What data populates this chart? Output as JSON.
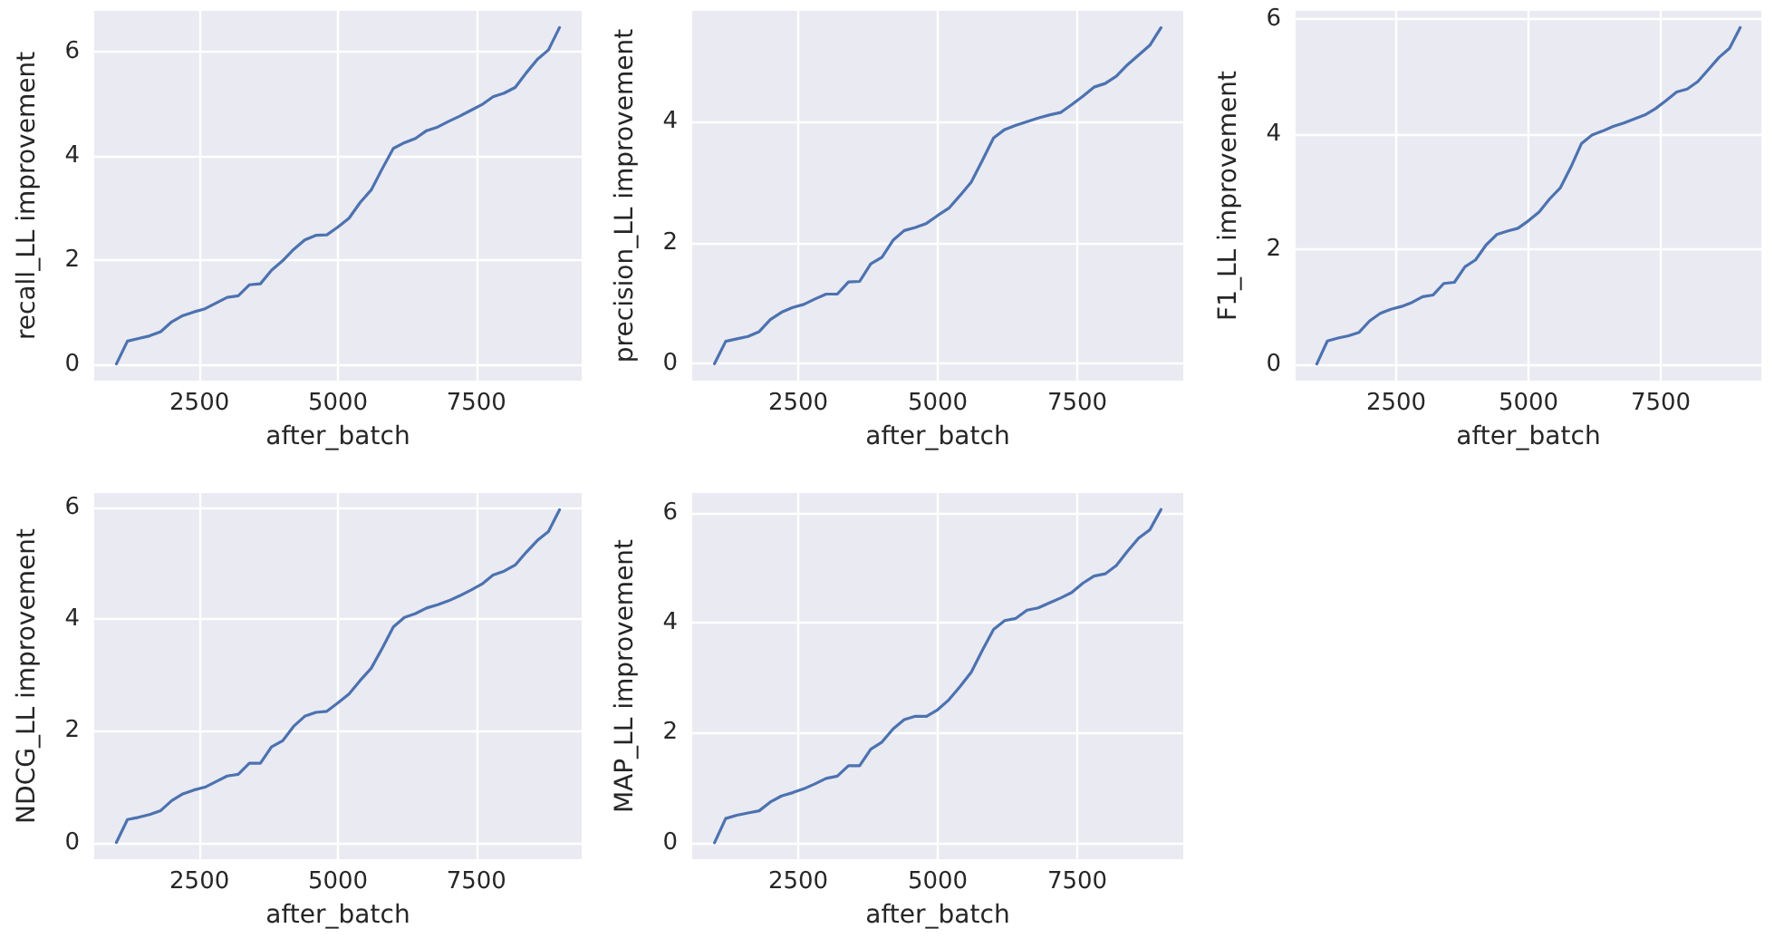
{
  "chart_data": [
    {
      "type": "line",
      "xlabel": "after_batch",
      "ylabel": "recall_LL improvement",
      "x": [
        1000,
        1200,
        1400,
        1600,
        1800,
        2000,
        2200,
        2400,
        2600,
        2800,
        3000,
        3200,
        3400,
        3600,
        3800,
        4000,
        4200,
        4400,
        4600,
        4800,
        5000,
        5200,
        5400,
        5600,
        5800,
        6000,
        6200,
        6400,
        6600,
        6800,
        7000,
        7200,
        7400,
        7600,
        7800,
        8000,
        8200,
        8400,
        8600,
        8800,
        9000
      ],
      "series": [
        {
          "color": "#4c72b0",
          "values": [
            0,
            0.44,
            0.49,
            0.54,
            0.62,
            0.81,
            0.93,
            1.0,
            1.06,
            1.17,
            1.28,
            1.31,
            1.52,
            1.54,
            1.8,
            1.98,
            2.2,
            2.38,
            2.47,
            2.48,
            2.63,
            2.8,
            3.1,
            3.34,
            3.75,
            4.14,
            4.25,
            4.33,
            4.48,
            4.55,
            4.66,
            4.76,
            4.87,
            4.98,
            5.13,
            5.2,
            5.31,
            5.59,
            5.85,
            6.03,
            6.46
          ]
        }
      ],
      "xlim": [
        600,
        9400
      ],
      "ylim": [
        -0.32,
        6.78
      ],
      "xticks": [
        2500,
        5000,
        7500
      ],
      "yticks": [
        0,
        2,
        4,
        6
      ],
      "grid": true,
      "marker": "none",
      "line_style": "solid"
    },
    {
      "type": "line",
      "xlabel": "after_batch",
      "ylabel": "precision_LL improvement",
      "x": [
        1000,
        1200,
        1400,
        1600,
        1800,
        2000,
        2200,
        2400,
        2600,
        2800,
        3000,
        3200,
        3400,
        3600,
        3800,
        4000,
        4200,
        4400,
        4600,
        4800,
        5000,
        5200,
        5400,
        5600,
        5800,
        6000,
        6200,
        6400,
        6600,
        6800,
        7000,
        7200,
        7400,
        7600,
        7800,
        8000,
        8200,
        8400,
        8600,
        8800,
        9000
      ],
      "series": [
        {
          "color": "#4c72b0",
          "values": [
            0,
            0.37,
            0.41,
            0.45,
            0.53,
            0.73,
            0.85,
            0.93,
            0.98,
            1.07,
            1.15,
            1.15,
            1.35,
            1.36,
            1.65,
            1.76,
            2.04,
            2.2,
            2.25,
            2.32,
            2.45,
            2.57,
            2.78,
            3.0,
            3.36,
            3.73,
            3.87,
            3.94,
            4.0,
            4.06,
            4.11,
            4.15,
            4.28,
            4.42,
            4.57,
            4.63,
            4.75,
            4.94,
            5.1,
            5.26,
            5.55
          ]
        }
      ],
      "xlim": [
        600,
        9400
      ],
      "ylim": [
        -0.28,
        5.83
      ],
      "xticks": [
        2500,
        5000,
        7500
      ],
      "yticks": [
        0,
        2,
        4
      ],
      "grid": true,
      "marker": "none",
      "line_style": "solid"
    },
    {
      "type": "line",
      "xlabel": "after_batch",
      "ylabel": "F1_LL improvement",
      "x": [
        1000,
        1200,
        1400,
        1600,
        1800,
        2000,
        2200,
        2400,
        2600,
        2800,
        3000,
        3200,
        3400,
        3600,
        3800,
        4000,
        4200,
        4400,
        4600,
        4800,
        5000,
        5200,
        5400,
        5600,
        5800,
        6000,
        6200,
        6400,
        6600,
        6800,
        7000,
        7200,
        7400,
        7600,
        7800,
        8000,
        8200,
        8400,
        8600,
        8800,
        9000
      ],
      "series": [
        {
          "color": "#4c72b0",
          "values": [
            0,
            0.4,
            0.45,
            0.49,
            0.55,
            0.75,
            0.88,
            0.95,
            1.0,
            1.07,
            1.17,
            1.2,
            1.4,
            1.42,
            1.69,
            1.81,
            2.07,
            2.25,
            2.31,
            2.36,
            2.49,
            2.64,
            2.87,
            3.06,
            3.42,
            3.83,
            3.98,
            4.05,
            4.13,
            4.19,
            4.26,
            4.33,
            4.44,
            4.58,
            4.73,
            4.78,
            4.91,
            5.12,
            5.33,
            5.49,
            5.85
          ]
        }
      ],
      "xlim": [
        600,
        9400
      ],
      "ylim": [
        -0.29,
        6.14
      ],
      "xticks": [
        2500,
        5000,
        7500
      ],
      "yticks": [
        0,
        2,
        4,
        6
      ],
      "grid": true,
      "marker": "none",
      "line_style": "solid"
    },
    {
      "type": "line",
      "xlabel": "after_batch",
      "ylabel": "NDCG_LL improvement",
      "x": [
        1000,
        1200,
        1400,
        1600,
        1800,
        2000,
        2200,
        2400,
        2600,
        2800,
        3000,
        3200,
        3400,
        3600,
        3800,
        4000,
        4200,
        4400,
        4600,
        4800,
        5000,
        5200,
        5400,
        5600,
        5800,
        6000,
        6200,
        6400,
        6600,
        6800,
        7000,
        7200,
        7400,
        7600,
        7800,
        8000,
        8200,
        8400,
        8600,
        8800,
        9000
      ],
      "series": [
        {
          "color": "#4c72b0",
          "values": [
            0,
            0.41,
            0.45,
            0.5,
            0.57,
            0.75,
            0.87,
            0.94,
            0.99,
            1.09,
            1.19,
            1.22,
            1.42,
            1.42,
            1.71,
            1.82,
            2.08,
            2.26,
            2.33,
            2.35,
            2.5,
            2.66,
            2.9,
            3.12,
            3.48,
            3.86,
            4.03,
            4.1,
            4.2,
            4.26,
            4.33,
            4.42,
            4.52,
            4.63,
            4.79,
            4.86,
            4.97,
            5.2,
            5.41,
            5.57,
            5.96
          ]
        }
      ],
      "xlim": [
        600,
        9400
      ],
      "ylim": [
        -0.3,
        6.26
      ],
      "xticks": [
        2500,
        5000,
        7500
      ],
      "yticks": [
        0,
        2,
        4,
        6
      ],
      "grid": true,
      "marker": "none",
      "line_style": "solid"
    },
    {
      "type": "line",
      "xlabel": "after_batch",
      "ylabel": "MAP_LL improvement",
      "x": [
        1000,
        1200,
        1400,
        1600,
        1800,
        2000,
        2200,
        2400,
        2600,
        2800,
        3000,
        3200,
        3400,
        3600,
        3800,
        4000,
        4200,
        4400,
        4600,
        4800,
        5000,
        5200,
        5400,
        5600,
        5800,
        6000,
        6200,
        6400,
        6600,
        6800,
        7000,
        7200,
        7400,
        7600,
        7800,
        8000,
        8200,
        8400,
        8600,
        8800,
        9000
      ],
      "series": [
        {
          "color": "#4c72b0",
          "values": [
            0,
            0.44,
            0.5,
            0.54,
            0.58,
            0.74,
            0.85,
            0.91,
            0.98,
            1.07,
            1.17,
            1.21,
            1.4,
            1.4,
            1.7,
            1.83,
            2.07,
            2.24,
            2.3,
            2.3,
            2.42,
            2.6,
            2.84,
            3.1,
            3.5,
            3.88,
            4.04,
            4.08,
            4.23,
            4.27,
            4.36,
            4.45,
            4.55,
            4.72,
            4.85,
            4.89,
            5.04,
            5.3,
            5.54,
            5.69,
            6.06
          ]
        }
      ],
      "xlim": [
        600,
        9400
      ],
      "ylim": [
        -0.3,
        6.36
      ],
      "xticks": [
        2500,
        5000,
        7500
      ],
      "yticks": [
        0,
        2,
        4,
        6
      ],
      "grid": true,
      "marker": "none",
      "line_style": "solid"
    }
  ]
}
